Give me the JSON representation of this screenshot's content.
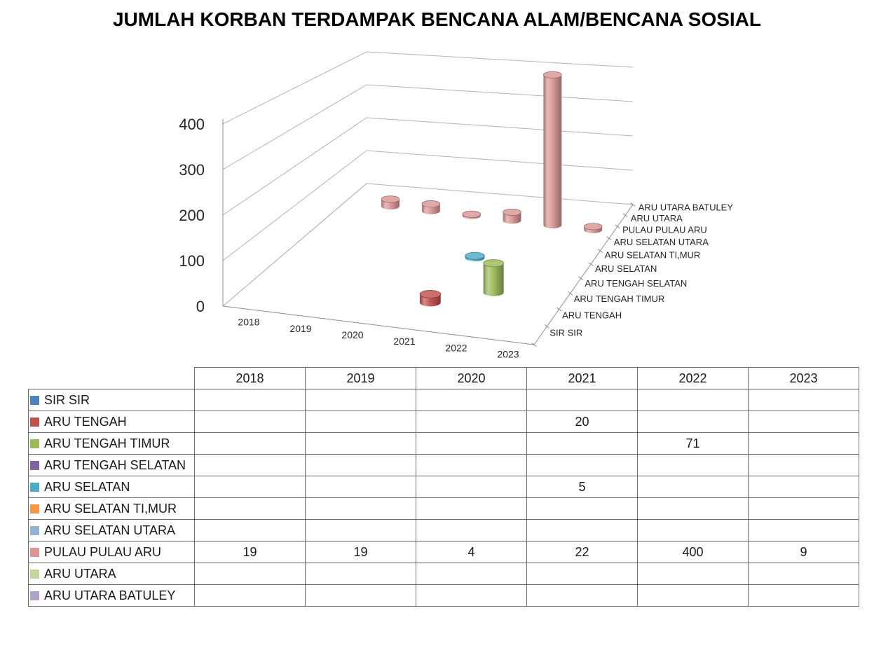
{
  "title": "JUMLAH KORBAN TERDAMPAK BENCANA ALAM/BENCANA SOSIAL",
  "colors": {
    "gridline": "#b3b3b3",
    "axis_line": "#8c8c8c",
    "chart_text": "#262626",
    "table_border": "#6b6b6b",
    "title_text": "#000000"
  },
  "chart_data": {
    "type": "bar",
    "subtype": "3d-cylinder",
    "title": "JUMLAH KORBAN TERDAMPAK BENCANA ALAM/BENCANA SOSIAL",
    "categories": [
      "2018",
      "2019",
      "2020",
      "2021",
      "2022",
      "2023"
    ],
    "value_axis": {
      "ticks": [
        0,
        100,
        200,
        300,
        400
      ],
      "min": 0,
      "max": 400
    },
    "grid": true,
    "legend_position": "table-rows-left",
    "series": [
      {
        "name": "SIR SIR",
        "color": "#4F81BD",
        "values": [
          null,
          null,
          null,
          null,
          null,
          null
        ]
      },
      {
        "name": "ARU TENGAH",
        "color": "#C0504D",
        "values": [
          null,
          null,
          null,
          20,
          null,
          null
        ]
      },
      {
        "name": "ARU TENGAH TIMUR",
        "color": "#9BBB59",
        "values": [
          null,
          null,
          null,
          null,
          71,
          null
        ]
      },
      {
        "name": "ARU TENGAH SELATAN",
        "color": "#8064A2",
        "values": [
          null,
          null,
          null,
          null,
          null,
          null
        ]
      },
      {
        "name": "ARU SELATAN",
        "color": "#4BACC6",
        "values": [
          null,
          null,
          null,
          5,
          null,
          null
        ]
      },
      {
        "name": "ARU SELATAN TI,MUR",
        "color": "#F79646",
        "values": [
          null,
          null,
          null,
          null,
          null,
          null
        ]
      },
      {
        "name": "ARU SELATAN UTARA",
        "color": "#95B3D7",
        "values": [
          null,
          null,
          null,
          null,
          null,
          null
        ]
      },
      {
        "name": "PULAU PULAU ARU",
        "color": "#D99694",
        "values": [
          19,
          19,
          4,
          22,
          400,
          9
        ]
      },
      {
        "name": "ARU UTARA",
        "color": "#C3D69B",
        "values": [
          null,
          null,
          null,
          null,
          null,
          null
        ]
      },
      {
        "name": "ARU UTARA BATULEY",
        "color": "#B3A2C7",
        "values": [
          null,
          null,
          null,
          null,
          null,
          null
        ]
      }
    ]
  }
}
